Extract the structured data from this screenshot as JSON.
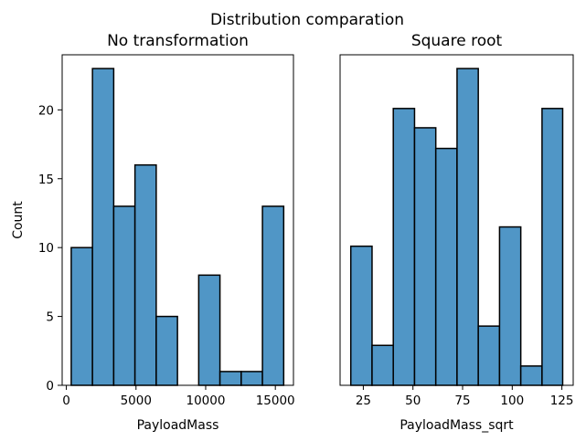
{
  "figure": {
    "suptitle": "Distribution comparation",
    "bar_color": "#5096c6",
    "edge_color": "#000000"
  },
  "chart_data": [
    {
      "type": "bar",
      "title": "No transformation",
      "xlabel": "PayloadMass",
      "ylabel": "Count",
      "xlim": [
        -300,
        16300
      ],
      "ylim": [
        0,
        24
      ],
      "xticks": [
        0,
        5000,
        10000,
        15000
      ],
      "xtick_labels": [
        "0",
        "5000",
        "10000",
        "15000"
      ],
      "yticks": [
        0,
        5,
        10,
        15,
        20
      ],
      "ytick_labels": [
        "0",
        "5",
        "10",
        "15",
        "20"
      ],
      "bin_edges": [
        350,
        1875,
        3400,
        4925,
        6450,
        7975,
        9500,
        11025,
        12550,
        14075,
        15600
      ],
      "values": [
        10,
        23,
        13,
        16,
        5,
        0,
        8,
        1,
        1,
        13
      ]
    },
    {
      "type": "bar",
      "title": "Square root",
      "xlabel": "PayloadMass_sqrt",
      "ylabel": "",
      "xlim": [
        13.3,
        130.7
      ],
      "ylim": [
        0,
        24
      ],
      "xticks": [
        25,
        50,
        75,
        100,
        125
      ],
      "xtick_labels": [
        "25",
        "50",
        "75",
        "100",
        "125"
      ],
      "yticks": [],
      "ytick_labels": [],
      "bin_edges": [
        18.7,
        29.4,
        40.1,
        50.8,
        61.5,
        72.2,
        82.9,
        93.6,
        104.3,
        115.0,
        125.4
      ],
      "values": [
        10.1,
        2.9,
        20.1,
        18.7,
        17.2,
        23.0,
        4.3,
        11.5,
        1.4,
        20.1
      ]
    }
  ]
}
